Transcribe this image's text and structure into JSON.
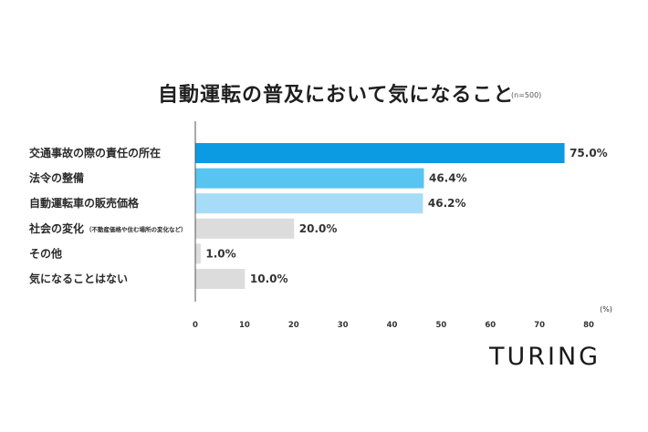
{
  "chart_data": {
    "type": "bar",
    "orientation": "horizontal",
    "title": "自動運転の普及において気になること",
    "subtitle": "(n=500)",
    "categories": [
      "交通事故の際の責任の所在",
      "法令の整備",
      "自動運転車の販売価格",
      "社会の変化",
      "その他",
      "気になることはない"
    ],
    "category_notes": [
      "",
      "",
      "",
      "（不動産価格や住む場所の変化など）",
      "",
      ""
    ],
    "values": [
      75.0,
      46.4,
      46.2,
      20.0,
      1.0,
      10.0
    ],
    "value_labels": [
      "75.0%",
      "46.4%",
      "46.2%",
      "20.0%",
      "1.0%",
      "10.0%"
    ],
    "bar_colors": [
      "#0b9be3",
      "#58c4f1",
      "#a6dcf7",
      "#dcdcdc",
      "#dcdcdc",
      "#dcdcdc"
    ],
    "xlim": [
      0,
      80
    ],
    "x_ticks": [
      "0",
      "10",
      "20",
      "30",
      "40",
      "50",
      "60",
      "70",
      "80"
    ],
    "x_unit": "(%)",
    "grid": false
  },
  "brand": {
    "name": "TURING"
  }
}
